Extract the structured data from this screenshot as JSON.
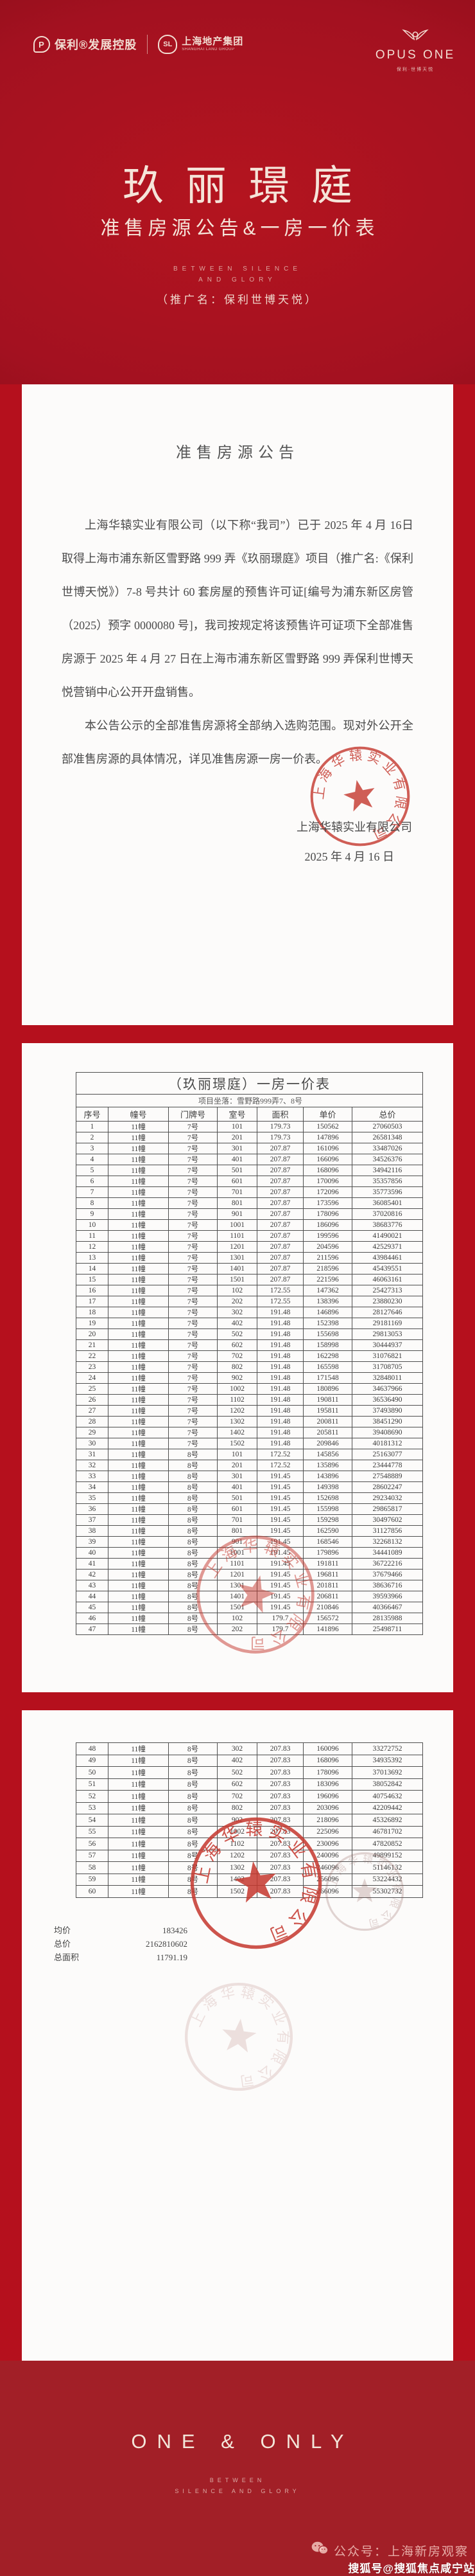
{
  "header": {
    "logo_poly_text": "保利®发展控股",
    "logo_poly_mark": "P",
    "logo_shland_badge": "SL",
    "logo_shland_cn": "上海地产集团",
    "logo_shland_en": "SHANGHAI LAND GROUP",
    "opus_one": "OPUS ONE",
    "opus_sub": "保利·世博天悦",
    "title": "玖丽璟庭",
    "subtitle": "准售房源公告&一房一价表",
    "tagline_line1": "BETWEEN SILENCE",
    "tagline_line2": "AND GLORY",
    "promo_name": "（推广名：保利世博天悦）"
  },
  "announcement": {
    "title": "准售房源公告",
    "para1": "上海华辕实业有限公司（以下称“我司”）已于 2025 年 4 月 16日取得上海市浦东新区雪野路 999 弄《玖丽璟庭》项目（推广名:《保利世博天悦》）7-8 号共计 60 套房屋的预售许可证[编号为浦东新区房管（2025）预字 0000080 号]，我司按规定将该预售许可证项下全部准售房源于 2025 年 4 月 27 日在上海市浦东新区雪野路 999 弄保利世博天悦营销中心公开开盘销售。",
    "para2": "本公告公示的全部准售房源将全部纳入选购范围。现对外公开全部准售房源的具体情况，详见准售房源一房一价表。",
    "signer": "上海华辕实业有限公司",
    "sign_date": "2025 年 4 月 16 日",
    "stamp_text": "上海华辕实业有限公司"
  },
  "price_table": {
    "title": "（玖丽璟庭）一房一价表",
    "location": "项目坐落：雪野路999弄7、8号",
    "columns": [
      "序号",
      "幢号",
      "门牌号",
      "室号",
      "面积",
      "单价",
      "总价"
    ],
    "rows_page1": [
      [
        "1",
        "11幢",
        "7号",
        "101",
        "179.73",
        "150562",
        "27060503"
      ],
      [
        "2",
        "11幢",
        "7号",
        "201",
        "179.73",
        "147896",
        "26581348"
      ],
      [
        "3",
        "11幢",
        "7号",
        "301",
        "207.87",
        "161096",
        "33487026"
      ],
      [
        "4",
        "11幢",
        "7号",
        "401",
        "207.87",
        "166096",
        "34526376"
      ],
      [
        "5",
        "11幢",
        "7号",
        "501",
        "207.87",
        "168096",
        "34942116"
      ],
      [
        "6",
        "11幢",
        "7号",
        "601",
        "207.87",
        "170096",
        "35357856"
      ],
      [
        "7",
        "11幢",
        "7号",
        "701",
        "207.87",
        "172096",
        "35773596"
      ],
      [
        "8",
        "11幢",
        "7号",
        "801",
        "207.87",
        "173596",
        "36085401"
      ],
      [
        "9",
        "11幢",
        "7号",
        "901",
        "207.87",
        "178096",
        "37020816"
      ],
      [
        "10",
        "11幢",
        "7号",
        "1001",
        "207.87",
        "186096",
        "38683776"
      ],
      [
        "11",
        "11幢",
        "7号",
        "1101",
        "207.87",
        "199596",
        "41490021"
      ],
      [
        "12",
        "11幢",
        "7号",
        "1201",
        "207.87",
        "204596",
        "42529371"
      ],
      [
        "13",
        "11幢",
        "7号",
        "1301",
        "207.87",
        "211596",
        "43984461"
      ],
      [
        "14",
        "11幢",
        "7号",
        "1401",
        "207.87",
        "218596",
        "45439551"
      ],
      [
        "15",
        "11幢",
        "7号",
        "1501",
        "207.87",
        "221596",
        "46063161"
      ],
      [
        "16",
        "11幢",
        "7号",
        "102",
        "172.55",
        "147362",
        "25427313"
      ],
      [
        "17",
        "11幢",
        "7号",
        "202",
        "172.55",
        "138396",
        "23880230"
      ],
      [
        "18",
        "11幢",
        "7号",
        "302",
        "191.48",
        "146896",
        "28127646"
      ],
      [
        "19",
        "11幢",
        "7号",
        "402",
        "191.48",
        "152398",
        "29181169"
      ],
      [
        "20",
        "11幢",
        "7号",
        "502",
        "191.48",
        "155698",
        "29813053"
      ],
      [
        "21",
        "11幢",
        "7号",
        "602",
        "191.48",
        "158998",
        "30444937"
      ],
      [
        "22",
        "11幢",
        "7号",
        "702",
        "191.48",
        "162298",
        "31076821"
      ],
      [
        "23",
        "11幢",
        "7号",
        "802",
        "191.48",
        "165598",
        "31708705"
      ],
      [
        "24",
        "11幢",
        "7号",
        "902",
        "191.48",
        "171548",
        "32848011"
      ],
      [
        "25",
        "11幢",
        "7号",
        "1002",
        "191.48",
        "180896",
        "34637966"
      ],
      [
        "26",
        "11幢",
        "7号",
        "1102",
        "191.48",
        "190811",
        "36536490"
      ],
      [
        "27",
        "11幢",
        "7号",
        "1202",
        "191.48",
        "195811",
        "37493890"
      ],
      [
        "28",
        "11幢",
        "7号",
        "1302",
        "191.48",
        "200811",
        "38451290"
      ],
      [
        "29",
        "11幢",
        "7号",
        "1402",
        "191.48",
        "205811",
        "39408690"
      ],
      [
        "30",
        "11幢",
        "7号",
        "1502",
        "191.48",
        "209846",
        "40181312"
      ],
      [
        "31",
        "11幢",
        "8号",
        "101",
        "172.52",
        "145856",
        "25163077"
      ],
      [
        "32",
        "11幢",
        "8号",
        "201",
        "172.52",
        "135896",
        "23444778"
      ],
      [
        "33",
        "11幢",
        "8号",
        "301",
        "191.45",
        "143896",
        "27548889"
      ],
      [
        "34",
        "11幢",
        "8号",
        "401",
        "191.45",
        "149398",
        "28602247"
      ],
      [
        "35",
        "11幢",
        "8号",
        "501",
        "191.45",
        "152698",
        "29234032"
      ],
      [
        "36",
        "11幢",
        "8号",
        "601",
        "191.45",
        "155998",
        "29865817"
      ],
      [
        "37",
        "11幢",
        "8号",
        "701",
        "191.45",
        "159298",
        "30497602"
      ],
      [
        "38",
        "11幢",
        "8号",
        "801",
        "191.45",
        "162590",
        "31127856"
      ],
      [
        "39",
        "11幢",
        "8号",
        "901",
        "191.45",
        "168546",
        "32268132"
      ],
      [
        "40",
        "11幢",
        "8号",
        "1001",
        "191.45",
        "179896",
        "34441089"
      ],
      [
        "41",
        "11幢",
        "8号",
        "1101",
        "191.45",
        "191811",
        "36722216"
      ],
      [
        "42",
        "11幢",
        "8号",
        "1201",
        "191.45",
        "196811",
        "37679466"
      ],
      [
        "43",
        "11幢",
        "8号",
        "1301",
        "191.45",
        "201811",
        "38636716"
      ],
      [
        "44",
        "11幢",
        "8号",
        "1401",
        "191.45",
        "206811",
        "39593966"
      ],
      [
        "45",
        "11幢",
        "8号",
        "1501",
        "191.45",
        "210846",
        "40366467"
      ],
      [
        "46",
        "11幢",
        "8号",
        "102",
        "179.7",
        "156572",
        "28135988"
      ],
      [
        "47",
        "11幢",
        "8号",
        "202",
        "179.7",
        "141896",
        "25498711"
      ]
    ],
    "rows_page2": [
      [
        "48",
        "11幢",
        "8号",
        "302",
        "207.83",
        "160096",
        "33272752"
      ],
      [
        "49",
        "11幢",
        "8号",
        "402",
        "207.83",
        "168096",
        "34935392"
      ],
      [
        "50",
        "11幢",
        "8号",
        "502",
        "207.83",
        "178096",
        "37013692"
      ],
      [
        "51",
        "11幢",
        "8号",
        "602",
        "207.83",
        "183096",
        "38052842"
      ],
      [
        "52",
        "11幢",
        "8号",
        "702",
        "207.83",
        "196096",
        "40754632"
      ],
      [
        "53",
        "11幢",
        "8号",
        "802",
        "207.83",
        "203096",
        "42209442"
      ],
      [
        "54",
        "11幢",
        "8号",
        "902",
        "207.83",
        "218096",
        "45326892"
      ],
      [
        "55",
        "11幢",
        "8号",
        "1002",
        "207.83",
        "225096",
        "46781702"
      ],
      [
        "56",
        "11幢",
        "8号",
        "1102",
        "207.83",
        "230096",
        "47820852"
      ],
      [
        "57",
        "11幢",
        "8号",
        "1202",
        "207.83",
        "240096",
        "49899152"
      ],
      [
        "58",
        "11幢",
        "8号",
        "1302",
        "207.83",
        "246096",
        "51146132"
      ],
      [
        "59",
        "11幢",
        "8号",
        "1402",
        "207.83",
        "256096",
        "53224432"
      ],
      [
        "60",
        "11幢",
        "8号",
        "1502",
        "207.83",
        "266096",
        "55302732"
      ]
    ],
    "summary": [
      {
        "label": "均价",
        "value": "183426"
      },
      {
        "label": "总价",
        "value": "2162810602"
      },
      {
        "label": "总面积",
        "value": "11791.19"
      }
    ]
  },
  "footer": {
    "brand": "ONE & ONLY",
    "tagline_line1": "BETWEEN",
    "tagline_line2": "SILENCE AND GLORY",
    "wechat_label": "公众号：上海新房观察",
    "watermark": "搜狐号@搜狐焦点咸宁站"
  }
}
